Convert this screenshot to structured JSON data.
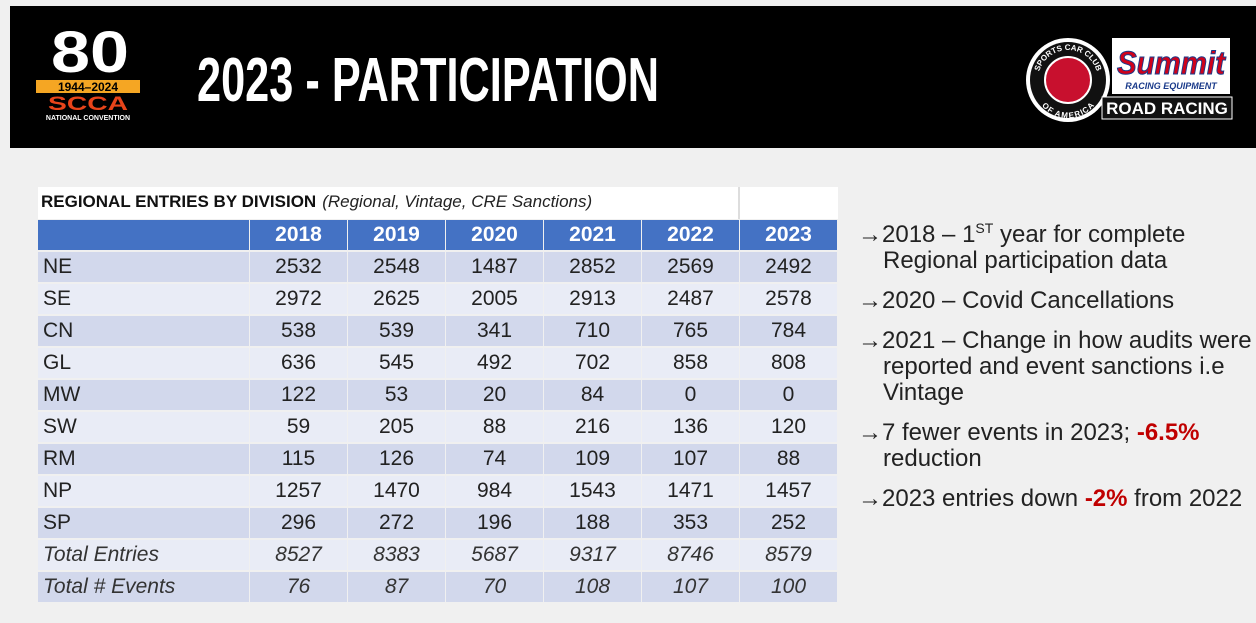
{
  "header": {
    "title": "2023 - PARTICIPATION",
    "left_logo": {
      "number": "80",
      "years": "1944–2024",
      "org": "SCCA",
      "event": "NATIONAL CONVENTION"
    },
    "right_logo": {
      "ring_top": "SPORTS CAR CLUB",
      "ring_bottom": "OF AMERICA",
      "brand": "Summit",
      "tagline": "RACING EQUIPMENT",
      "series": "ROAD RACING"
    }
  },
  "table": {
    "title": "REGIONAL ENTRIES BY DIVISION",
    "note": "(Regional, Vintage, CRE Sanctions)",
    "columns": [
      2018,
      2019,
      2020,
      2021,
      2022,
      2023
    ],
    "rows": [
      {
        "label": "NE",
        "values": [
          2532,
          2548,
          1487,
          2852,
          2569,
          2492
        ]
      },
      {
        "label": "SE",
        "values": [
          2972,
          2625,
          2005,
          2913,
          2487,
          2578
        ]
      },
      {
        "label": "CN",
        "values": [
          538,
          539,
          341,
          710,
          765,
          784
        ]
      },
      {
        "label": "GL",
        "values": [
          636,
          545,
          492,
          702,
          858,
          808
        ]
      },
      {
        "label": "MW",
        "values": [
          122,
          53,
          20,
          84,
          0,
          0
        ]
      },
      {
        "label": "SW",
        "values": [
          59,
          205,
          88,
          216,
          136,
          120
        ]
      },
      {
        "label": "RM",
        "values": [
          115,
          126,
          74,
          109,
          107,
          88
        ]
      },
      {
        "label": "NP",
        "values": [
          1257,
          1470,
          984,
          1543,
          1471,
          1457
        ]
      },
      {
        "label": "SP",
        "values": [
          296,
          272,
          196,
          188,
          353,
          252
        ]
      }
    ],
    "totals": [
      {
        "label": "Total Entries",
        "values": [
          8527,
          8383,
          5687,
          9317,
          8746,
          8579
        ]
      },
      {
        "label": "Total # Events",
        "values": [
          76,
          87,
          70,
          108,
          107,
          100
        ]
      }
    ]
  },
  "bullets": [
    [
      {
        "text": "→2018 – 1"
      },
      {
        "text": "ST",
        "style": "sup"
      },
      {
        "text": " year for complete Regional participation data"
      }
    ],
    [
      {
        "text": "→2020 – Covid Cancellations"
      }
    ],
    [
      {
        "text": "→2021 – Change in how audits were reported and event sanctions i.e Vintage"
      }
    ],
    [
      {
        "text": "→7 fewer events in 2023; "
      },
      {
        "text": "-6.5%",
        "style": "red"
      },
      {
        "text": " reduction"
      }
    ],
    [
      {
        "text": "→2023 entries down "
      },
      {
        "text": "-2%",
        "style": "red"
      },
      {
        "text": " from 2022"
      }
    ]
  ]
}
